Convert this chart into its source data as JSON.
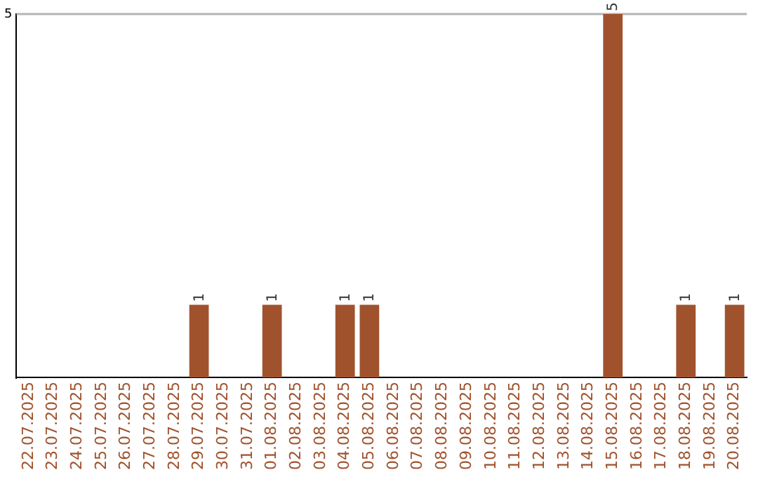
{
  "chart_data": {
    "type": "bar",
    "categories": [
      "22.07.2025",
      "23.07.2025",
      "24.07.2025",
      "25.07.2025",
      "26.07.2025",
      "27.07.2025",
      "28.07.2025",
      "29.07.2025",
      "30.07.2025",
      "31.07.2025",
      "01.08.2025",
      "02.08.2025",
      "03.08.2025",
      "04.08.2025",
      "05.08.2025",
      "06.08.2025",
      "07.08.2025",
      "08.08.2025",
      "09.08.2025",
      "10.08.2025",
      "11.08.2025",
      "12.08.2025",
      "13.08.2025",
      "14.08.2025",
      "15.08.2025",
      "16.08.2025",
      "17.08.2025",
      "18.08.2025",
      "19.08.2025",
      "20.08.2025"
    ],
    "values": [
      0,
      0,
      0,
      0,
      0,
      0,
      0,
      1,
      0,
      0,
      1,
      0,
      0,
      1,
      1,
      0,
      0,
      0,
      0,
      0,
      0,
      0,
      0,
      0,
      5,
      0,
      0,
      1,
      0,
      1
    ],
    "value_labels": [
      null,
      null,
      null,
      null,
      null,
      null,
      null,
      "1",
      null,
      null,
      "1",
      null,
      null,
      "1",
      "1",
      null,
      null,
      null,
      null,
      null,
      null,
      null,
      null,
      null,
      "5",
      null,
      null,
      "1",
      null,
      "1"
    ],
    "color": "#a0522d",
    "ylim": [
      0,
      5
    ],
    "yticks": [
      5
    ]
  }
}
